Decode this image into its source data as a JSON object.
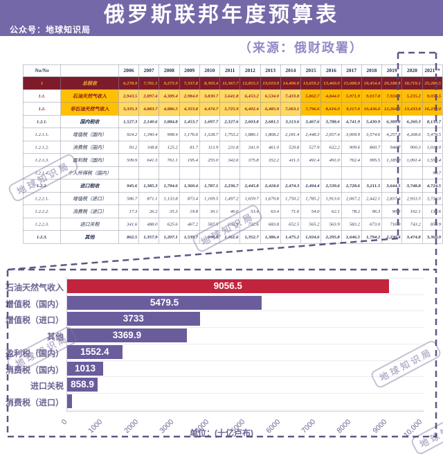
{
  "header": {
    "title": "俄罗斯联邦年度预算表",
    "account": "公众号：地球知识局",
    "source": "（来源：俄财政署）"
  },
  "watermark_text": "地球知识局",
  "table": {
    "corner_label": "No/No",
    "years": [
      "2006",
      "2007",
      "2008",
      "2009",
      "2010",
      "2011",
      "2012",
      "2013",
      "2014",
      "2015",
      "2016",
      "2017",
      "2018",
      "2019",
      "2020",
      "2021**"
    ],
    "rows": [
      {
        "no": "1",
        "label": "总税收",
        "style": "total",
        "values": [
          "6,278.9",
          "7,781.1",
          "9,275.9",
          "7,337.8",
          "8,305.4",
          "11,367.7",
          "12,855.5",
          "13,019.9",
          "14,496.9",
          "13,659.2",
          "13,460.0",
          "15,088.9",
          "19,454.4",
          "20,188.8",
          "18,719.1",
          "25,286.5"
        ]
      },
      {
        "no": "1.1.",
        "label": "石油天然气收入",
        "style": "gold",
        "values": [
          "2,943.5",
          "2,897.4",
          "4,389.4",
          "2,984.0",
          "3,830.7",
          "5,641.8",
          "6,453.2",
          "6,534.0",
          "7,433.8",
          "5,862.7",
          "4,844.0",
          "5,971.9",
          "9,017.8",
          "7,924.3",
          "5,235.2",
          "9,056.5"
        ]
      },
      {
        "no": "1.2.",
        "label": "非石油天然气收入",
        "style": "gold",
        "values": [
          "3,335.3",
          "4,883.7",
          "4,886.5",
          "4,353.8",
          "4,474.7",
          "5,725.9",
          "6,402.4",
          "6,485.9",
          "7,063.1",
          "7,796.6",
          "8,616.0",
          "9,117.0",
          "10,436.6",
          "12,264.5",
          "13,433.8",
          "16,230.0"
        ]
      },
      {
        "no": "1.2.1.",
        "label": "国内税收",
        "style": "category",
        "values": [
          "1,527.3",
          "2,140.6",
          "1,884.8",
          "1,453.7",
          "1,697.7",
          "2,327.6",
          "2,603.8",
          "2,681.5",
          "3,113.6",
          "3,467.6",
          "3,788.6",
          "4,741.9",
          "5,430.9",
          "6,389.6",
          "6,260.3",
          "8,135.7"
        ]
      },
      {
        "no": "1.2.1.1.",
        "label": "增值税（国内）",
        "style": "normal",
        "values": [
          "924.2",
          "1,390.4",
          "998.4",
          "1,176.6",
          "1,328.7",
          "1,753.2",
          "1,886.1",
          "1,868.2",
          "2,181.4",
          "2,448.3",
          "2,657.4",
          "3,069.9",
          "3,574.6",
          "4,257.8",
          "4,268.6",
          "5,479.5"
        ]
      },
      {
        "no": "1.2.1.2.",
        "label": "消费税（国内）",
        "style": "normal",
        "values": [
          "93.2",
          "108.8",
          "125.2",
          "81.7",
          "113.9",
          "231.8",
          "341.9",
          "461.0",
          "520.8",
          "527.9",
          "632.2",
          "909.6",
          "860.7",
          "946.7",
          "900.3",
          "1,013.0"
        ]
      },
      {
        "no": "1.2.1.3.",
        "label": "盈利税（国内）",
        "style": "normal",
        "values": [
          "509.9",
          "641.3",
          "761.1",
          "195.4",
          "255.0",
          "342.6",
          "375.8",
          "352.2",
          "411.3",
          "491.4",
          "491.0",
          "762.4",
          "995.5",
          "1,185.0",
          "1,091.4",
          "1,552.4"
        ]
      },
      {
        "no": "1.2.1.4.",
        "label": "个人所得税（国内）",
        "style": "normal",
        "values": [
          "",
          "",
          "",
          "",
          "",
          "",
          "",
          "",
          "",
          "",
          "",
          "",
          "",
          "",
          "",
          "90.7"
        ]
      },
      {
        "no": "1.2.2.",
        "label": "进口税收",
        "style": "category",
        "values": [
          "945.6",
          "1,385.3",
          "1,794.6",
          "1,360.4",
          "1,787.1",
          "2,236.7",
          "2,445.8",
          "2,418.0",
          "2,474.3",
          "2,494.4",
          "2,539.6",
          "2,728.6",
          "3,211.5",
          "3,644.5",
          "3,748.8",
          "4,724.5"
        ]
      },
      {
        "no": "1.2.2.1.",
        "label": "增值税（进口）",
        "style": "normal",
        "values": [
          "586.7",
          "871.1",
          "1,133.8",
          "873.4",
          "1,169.5",
          "1,497.2",
          "1,659.7",
          "1,670.8",
          "1,750.2",
          "1,785.2",
          "1,913.6",
          "2,067.2",
          "2,442.1",
          "2,837.4",
          "2,933.5",
          "3,733.0"
        ]
      },
      {
        "no": "1.2.2.2.",
        "label": "消费税（进口）",
        "style": "normal",
        "values": [
          "17.3",
          "26.2",
          "35.3",
          "19.8",
          "30.1",
          "46.6",
          "53.4",
          "63.4",
          "71.6",
          "54.0",
          "62.1",
          "78.2",
          "96.3",
          "90.3",
          "102.1",
          "132.6"
        ]
      },
      {
        "no": "1.2.2.3.",
        "label": "进口关税",
        "style": "normal",
        "values": [
          "341.6",
          "488.0",
          "625.6",
          "467.2",
          "587.5",
          "692.9",
          "732.6",
          "683.8",
          "652.5",
          "565.2",
          "563.9",
          "583.2",
          "673.0",
          "716.9",
          "743.2",
          "858.9"
        ]
      },
      {
        "no": "1.2.3.",
        "label": "其他",
        "style": "category",
        "values": [
          "862.5",
          "1,357.9",
          "1,207.1",
          "1,539.7",
          "990.0",
          "1,161.6",
          "1,352.7",
          "1,386.4",
          "1,475.2",
          "1,924.6",
          "2,295.8",
          "1,646.5",
          "1,794.2",
          "2,230.4",
          "3,474.8",
          "3,369.9"
        ]
      }
    ]
  },
  "chart_data": {
    "type": "bar",
    "orientation": "horizontal",
    "categories": [
      "石油天然气收入",
      "增值税（国内）",
      "增值税（进口）",
      "其他",
      "盈利税（国内）",
      "消费税（国内）",
      "进口关税",
      "消费税（进口）"
    ],
    "values": [
      9056.5,
      5479.5,
      3733,
      3369.9,
      1552.4,
      1013,
      858.9,
      132.6
    ],
    "value_labels": [
      "9056.5",
      "5479.5",
      "3733",
      "3369.9",
      "1552.4",
      "1013",
      "858.9",
      ""
    ],
    "bar_colors": [
      "#c2243e",
      "#6b5c9c",
      "#6b5c9c",
      "#6b5c9c",
      "#6b5c9c",
      "#6b5c9c",
      "#6b5c9c",
      "#6b5c9c"
    ],
    "x_ticks": [
      "0",
      "1000",
      "2000",
      "3000",
      "4000",
      "5000",
      "6000",
      "7000",
      "8000",
      "9000",
      "10,000"
    ],
    "xlim": [
      0,
      10000
    ],
    "grid": "horizontal",
    "xlabel": "单位：(十亿卢布)",
    "title": ""
  },
  "colors": {
    "banner": "#7568a8",
    "source_text": "#9488c6",
    "accent_red": "#c2243e",
    "accent_purple": "#6b5c9c",
    "gold": "#ffc003",
    "gold_light": "#ffd964",
    "maroon": "#7e1b2b",
    "dash": "#4e4277"
  }
}
